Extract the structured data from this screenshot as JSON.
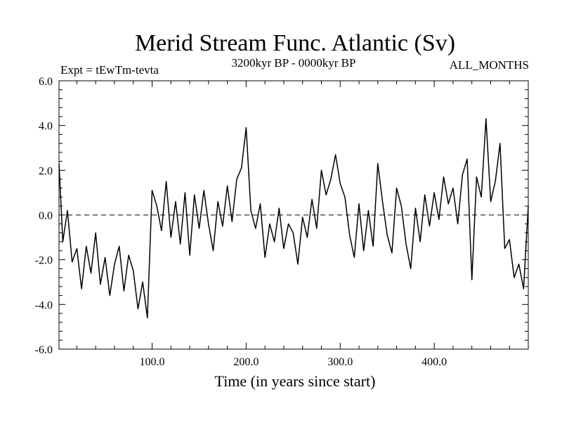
{
  "chart_data": {
    "type": "line",
    "title": "Merid Stream Func. Atlantic (Sv)",
    "subtitle_left": "Expt = tEwTm-tevta",
    "subtitle_center": "3200kyr BP - 0000kyr BP",
    "subtitle_right": "ALL_MONTHS",
    "xlabel": "Time (in years since start)",
    "ylabel": "",
    "xlim": [
      1,
      500
    ],
    "ylim": [
      -6.0,
      6.0
    ],
    "x_ticks": [
      100,
      200,
      300,
      400
    ],
    "x_tick_labels": [
      "100.0",
      "200.0",
      "300.0",
      "400.0"
    ],
    "y_ticks": [
      -6,
      -4,
      -2,
      0,
      2,
      4,
      6
    ],
    "y_tick_labels": [
      "-6.0",
      "-4.0",
      "-2.0",
      "0.0",
      "2.0",
      "4.0",
      "6.0"
    ],
    "reference_line": 0.0,
    "series": [
      {
        "name": "Merid Stream Func. Atlantic",
        "x": [
          1,
          5,
          10,
          15,
          20,
          25,
          30,
          35,
          40,
          45,
          50,
          55,
          60,
          65,
          70,
          75,
          80,
          85,
          90,
          95,
          100,
          105,
          110,
          115,
          120,
          125,
          130,
          135,
          140,
          145,
          150,
          155,
          160,
          165,
          170,
          175,
          180,
          185,
          190,
          195,
          200,
          205,
          210,
          215,
          220,
          225,
          230,
          235,
          240,
          245,
          250,
          255,
          260,
          265,
          270,
          275,
          280,
          285,
          290,
          295,
          300,
          305,
          310,
          315,
          320,
          325,
          330,
          335,
          340,
          345,
          350,
          355,
          360,
          365,
          370,
          375,
          380,
          385,
          390,
          395,
          400,
          405,
          410,
          415,
          420,
          425,
          430,
          435,
          440,
          445,
          450,
          455,
          460,
          465,
          470,
          475,
          480,
          485,
          490,
          495,
          500
        ],
        "values": [
          2.3,
          -1.2,
          0.2,
          -2.1,
          -1.5,
          -3.3,
          -1.4,
          -2.6,
          -0.8,
          -3.1,
          -1.9,
          -3.6,
          -2.2,
          -1.4,
          -3.4,
          -1.8,
          -2.5,
          -4.2,
          -3.0,
          -4.6,
          1.1,
          0.4,
          -0.7,
          1.5,
          -1.0,
          0.6,
          -1.3,
          1.0,
          -1.8,
          0.9,
          -0.6,
          1.1,
          -0.4,
          -1.6,
          0.6,
          -0.5,
          1.3,
          -0.3,
          1.6,
          2.1,
          3.9,
          0.2,
          -0.6,
          0.5,
          -1.9,
          -0.4,
          -1.2,
          0.3,
          -1.5,
          -0.4,
          -0.8,
          -2.2,
          -0.1,
          -1.0,
          0.7,
          -0.6,
          2.0,
          0.9,
          1.6,
          2.7,
          1.4,
          0.8,
          -0.9,
          -1.9,
          0.5,
          -1.6,
          0.2,
          -1.4,
          2.3,
          0.6,
          -0.9,
          -1.7,
          1.2,
          0.4,
          -1.3,
          -2.4,
          0.3,
          -1.2,
          0.9,
          -0.5,
          1.0,
          -0.2,
          1.7,
          0.5,
          1.2,
          -0.4,
          1.8,
          2.5,
          -2.9,
          1.7,
          0.8,
          4.3,
          0.6,
          1.5,
          3.2,
          -1.5,
          -1.1,
          -2.8,
          -2.2,
          -3.3,
          0.4
        ]
      }
    ]
  }
}
